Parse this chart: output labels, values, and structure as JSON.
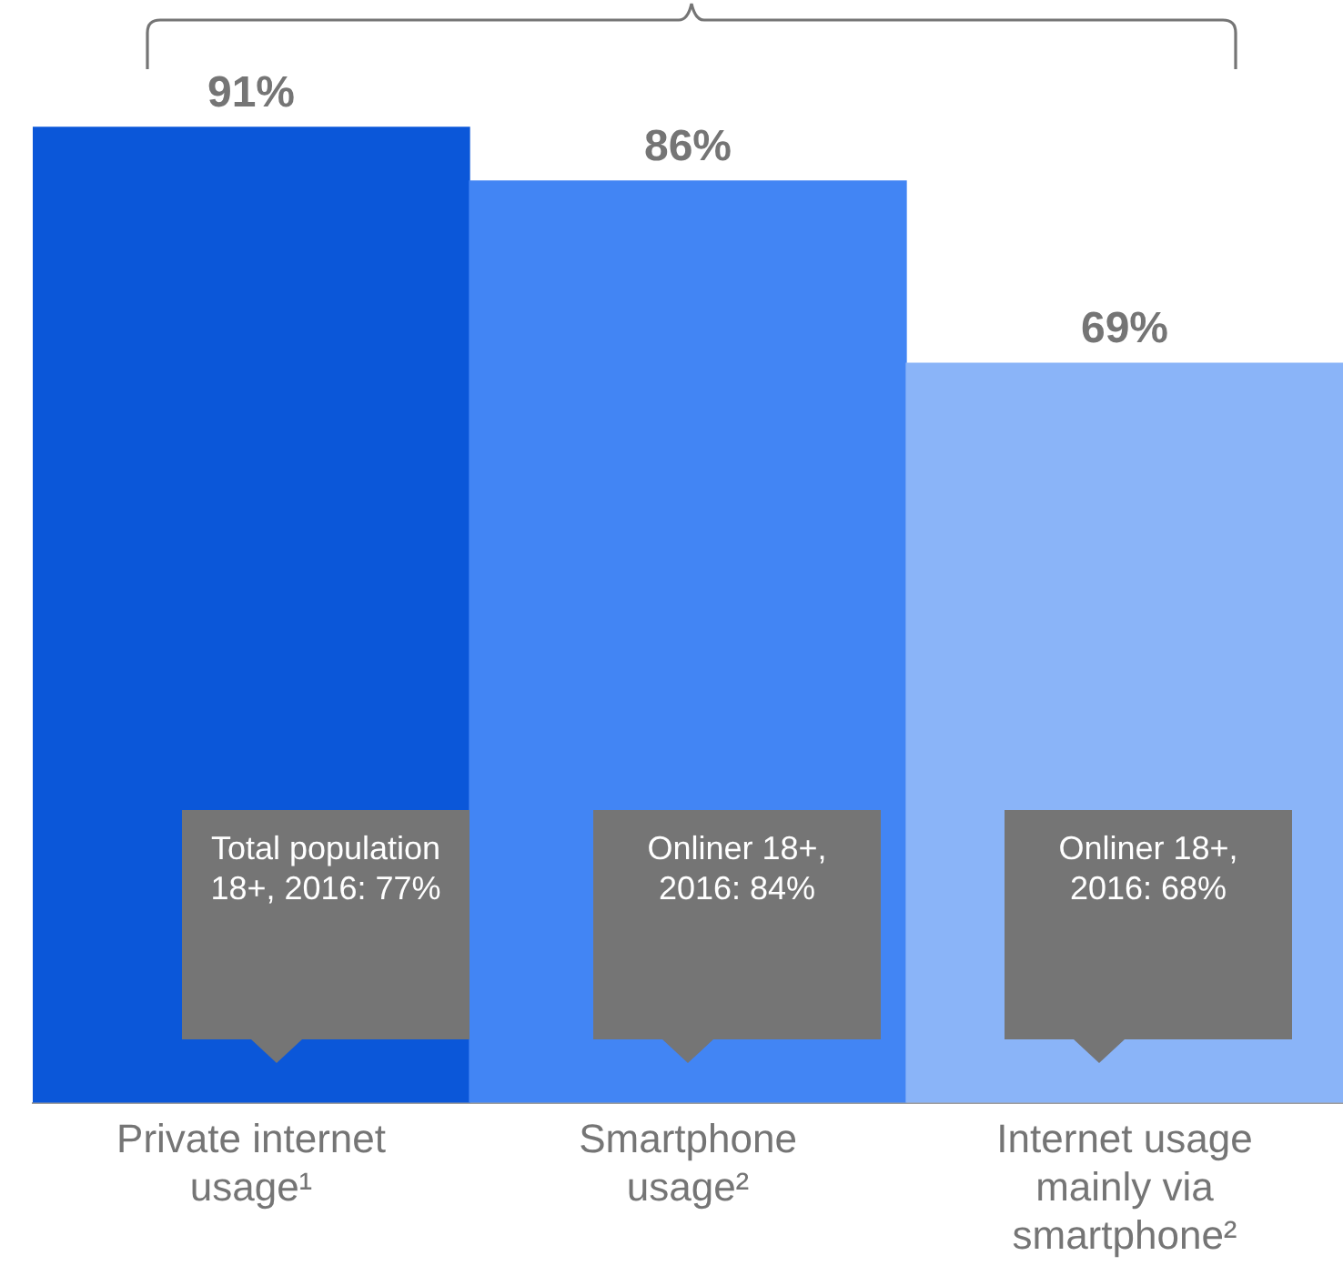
{
  "chart_data": {
    "type": "bar",
    "categories": [
      "Private internet usage¹",
      "Smartphone usage²",
      "Internet usage mainly via smartphone²"
    ],
    "values": [
      91,
      86,
      69
    ],
    "colors": [
      "#0b57d9",
      "#4285f4",
      "#8ab4f8"
    ],
    "value_labels": [
      "91%",
      "86%",
      "69%"
    ],
    "annotations": [
      "Total population 18+, 2016: 77%",
      "Onliner 18+, 2016: 84%",
      "Onliner 18+, 2016: 68%"
    ],
    "grid": false,
    "legend": false
  }
}
